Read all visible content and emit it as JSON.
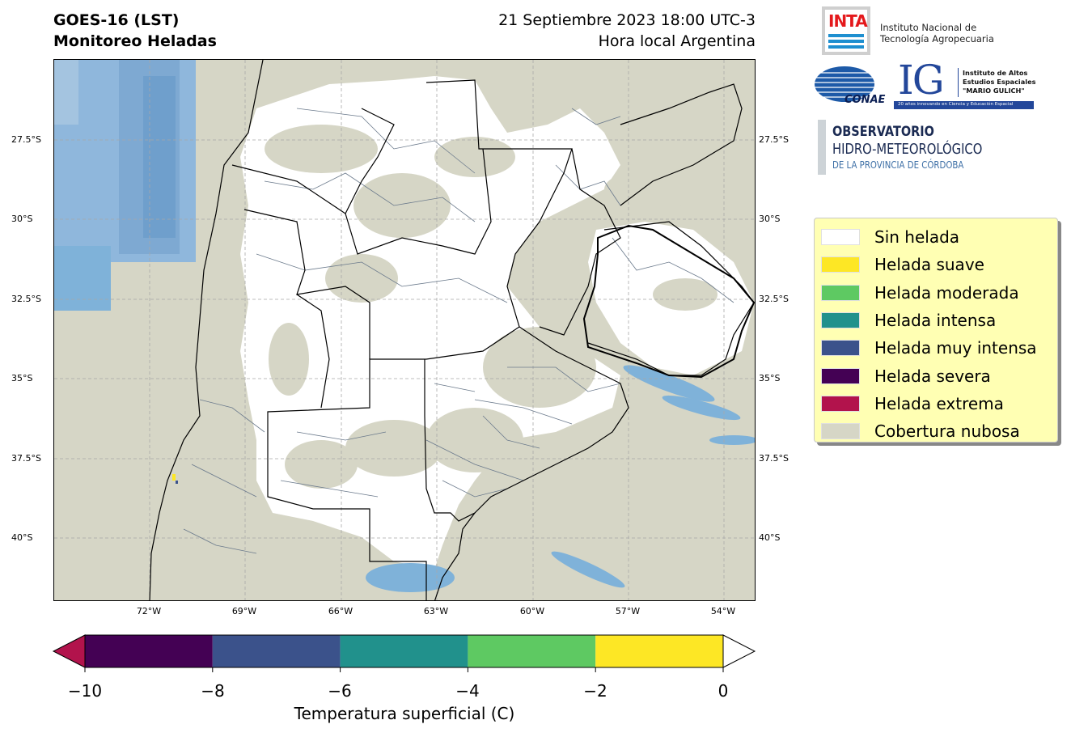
{
  "header": {
    "title_line1": "GOES-16 (LST)",
    "title_line2": "Monitoreo Heladas",
    "date_line1": "21 Septiembre 2023 18:00 UTC-3",
    "date_line2": "Hora local Argentina"
  },
  "logos": {
    "inta_mark": "INTA",
    "inta_caption_1": "Instituto Nacional de",
    "inta_caption_2": "Tecnología Agropecuaria",
    "conae_mark": "CONAE",
    "ig_mark": "IG",
    "ig_caption_1": "Instituto de Altos",
    "ig_caption_2": "Estudios Espaciales",
    "ig_caption_3": "\"MARIO GULICH\"",
    "ig_bar_text": "20 años innovando en Ciencia y Educación Espacial",
    "obs_line1": "OBSERVATORIO",
    "obs_line2": "HIDRO-METEOROLÓGICO",
    "obs_line3": "DE LA PROVINCIA DE CÓRDOBA"
  },
  "map": {
    "lat_ticks": [
      "27.5°S",
      "30°S",
      "32.5°S",
      "35°S",
      "37.5°S",
      "40°S"
    ],
    "lon_ticks": [
      "72°W",
      "69°W",
      "66°W",
      "63°W",
      "60°W",
      "57°W",
      "54°W"
    ],
    "lon_range": [
      -74.95,
      -52.95
    ],
    "lat_range": [
      -42.0,
      -25.0
    ],
    "gridlines": true,
    "colors": {
      "cloud": "#d6d6c6",
      "no_frost": "#ffffff",
      "water_blue": "#7fb2d9",
      "boundary_province": "#000000",
      "boundary_department": "#6b7a8c"
    }
  },
  "legend": {
    "placement": "right",
    "items": [
      {
        "label": "Sin helada",
        "color": "#ffffff"
      },
      {
        "label": "Helada suave",
        "color": "#fde725"
      },
      {
        "label": "Helada moderada",
        "color": "#5ec962"
      },
      {
        "label": "Helada intensa",
        "color": "#21918c"
      },
      {
        "label": "Helada muy intensa",
        "color": "#3b528b"
      },
      {
        "label": "Helada severa",
        "color": "#440154"
      },
      {
        "label": "Helada extrema",
        "color": "#b2134c"
      },
      {
        "label": "Cobertura nubosa",
        "color": "#d6d6c6"
      }
    ]
  },
  "colorbar": {
    "title": "Temperatura superficial (C)",
    "ticks": [
      "−10",
      "−8",
      "−6",
      "−4",
      "−2",
      "0"
    ],
    "tick_values": [
      -10,
      -8,
      -6,
      -4,
      -2,
      0
    ],
    "segments": [
      {
        "from": -10,
        "to": -8,
        "color": "#440154"
      },
      {
        "from": -8,
        "to": -6,
        "color": "#3b528b"
      },
      {
        "from": -6,
        "to": -4,
        "color": "#21918c"
      },
      {
        "from": -4,
        "to": -2,
        "color": "#5ec962"
      },
      {
        "from": -2,
        "to": 0,
        "color": "#fde725"
      }
    ],
    "under_color": "#b2134c",
    "over_color": "#ffffff"
  }
}
